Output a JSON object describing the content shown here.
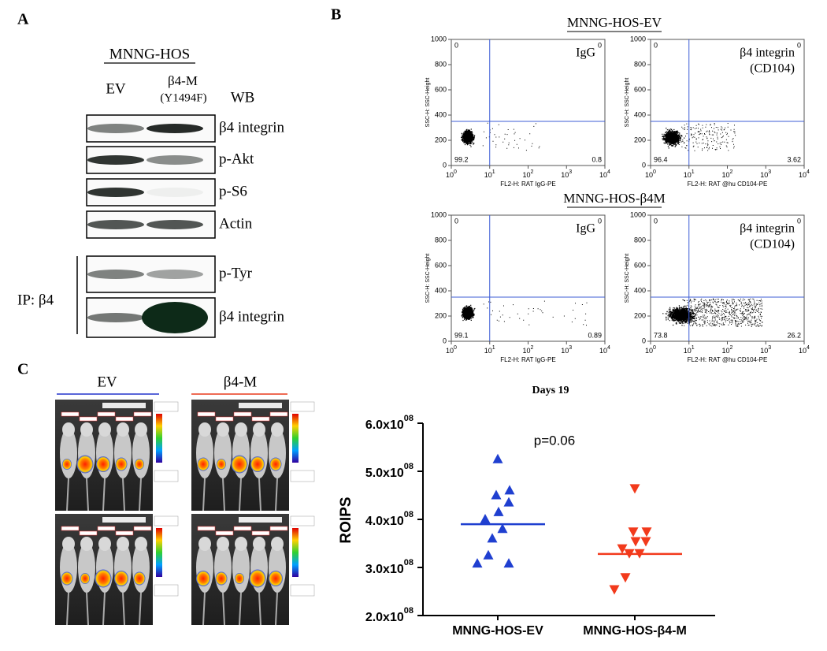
{
  "panel_a": {
    "label": "A",
    "cell_line": "MNNG-HOS",
    "lanes": [
      "EV",
      "β4-M"
    ],
    "lane_note": "(Y1494F)",
    "method": "WB",
    "blots": [
      "β4 integrin",
      "p-Akt",
      "p-S6",
      "Actin",
      "p-Tyr",
      "β4 integrin"
    ],
    "ip_label": "IP: β4"
  },
  "panel_b": {
    "label": "B",
    "y_label": "SSC-H: SSC-Height",
    "y_ticks": [
      "0",
      "200",
      "400",
      "600",
      "800",
      "1000"
    ],
    "x_tick_base": "10",
    "x_tick_exponents": [
      "0",
      "1",
      "2",
      "3",
      "4"
    ],
    "groups": [
      {
        "title": "MNNG-HOS-EV",
        "plots": [
          {
            "stain": [
              "IgG"
            ],
            "x_label": "FL2-H: RAT  IgG-PE",
            "quadrants": [
              "0",
              "0",
              "99.2",
              "0.8"
            ]
          },
          {
            "stain": [
              "β4 integrin",
              "(CD104)"
            ],
            "x_label": "FL2-H: RAT @hu CD104-PE",
            "quadrants": [
              "0",
              "0",
              "96.4",
              "3.62"
            ]
          }
        ]
      },
      {
        "title": "MNNG-HOS-β4M",
        "plots": [
          {
            "stain": [
              "IgG"
            ],
            "x_label": "FL2-H: RAT  IgG-PE",
            "quadrants": [
              "0",
              "0",
              "99.1",
              "0.89"
            ]
          },
          {
            "stain": [
              "β4 integrin",
              "(CD104)"
            ],
            "x_label": "FL2-H: RAT @hu CD104-PE",
            "quadrants": [
              "0",
              "0",
              "73.8",
              "26.2"
            ]
          }
        ]
      }
    ]
  },
  "panel_c": {
    "label": "C",
    "image_groups": [
      "EV",
      "β4-M"
    ]
  },
  "chart_data": {
    "type": "strip",
    "title": "Days 19",
    "y_label": "ROIPS",
    "annotation": "p=0.06",
    "categories": [
      "MNNG-HOS-EV",
      "MNNG-HOS-β4-M"
    ],
    "series": [
      {
        "color": "#1f3fd0",
        "marker": "triangle-up",
        "mean": 390000000,
        "values": [
          525000000,
          460000000,
          450000000,
          435000000,
          415000000,
          400000000,
          380000000,
          360000000,
          325000000,
          308000000,
          308000000
        ]
      },
      {
        "color": "#f23a1c",
        "marker": "triangle-down",
        "mean": 328000000,
        "values": [
          465000000,
          375000000,
          375000000,
          355000000,
          355000000,
          340000000,
          330000000,
          330000000,
          280000000,
          255000000
        ]
      }
    ],
    "ylim": [
      200000000,
      600000000
    ],
    "yticks": [
      {
        "value": 200000000,
        "label": "2.0x10",
        "exponent": "08"
      },
      {
        "value": 300000000,
        "label": "3.0x10",
        "exponent": "08"
      },
      {
        "value": 400000000,
        "label": "4.0x10",
        "exponent": "08"
      },
      {
        "value": 500000000,
        "label": "5.0x10",
        "exponent": "08"
      },
      {
        "value": 600000000,
        "label": "6.0x10",
        "exponent": "08"
      }
    ]
  }
}
